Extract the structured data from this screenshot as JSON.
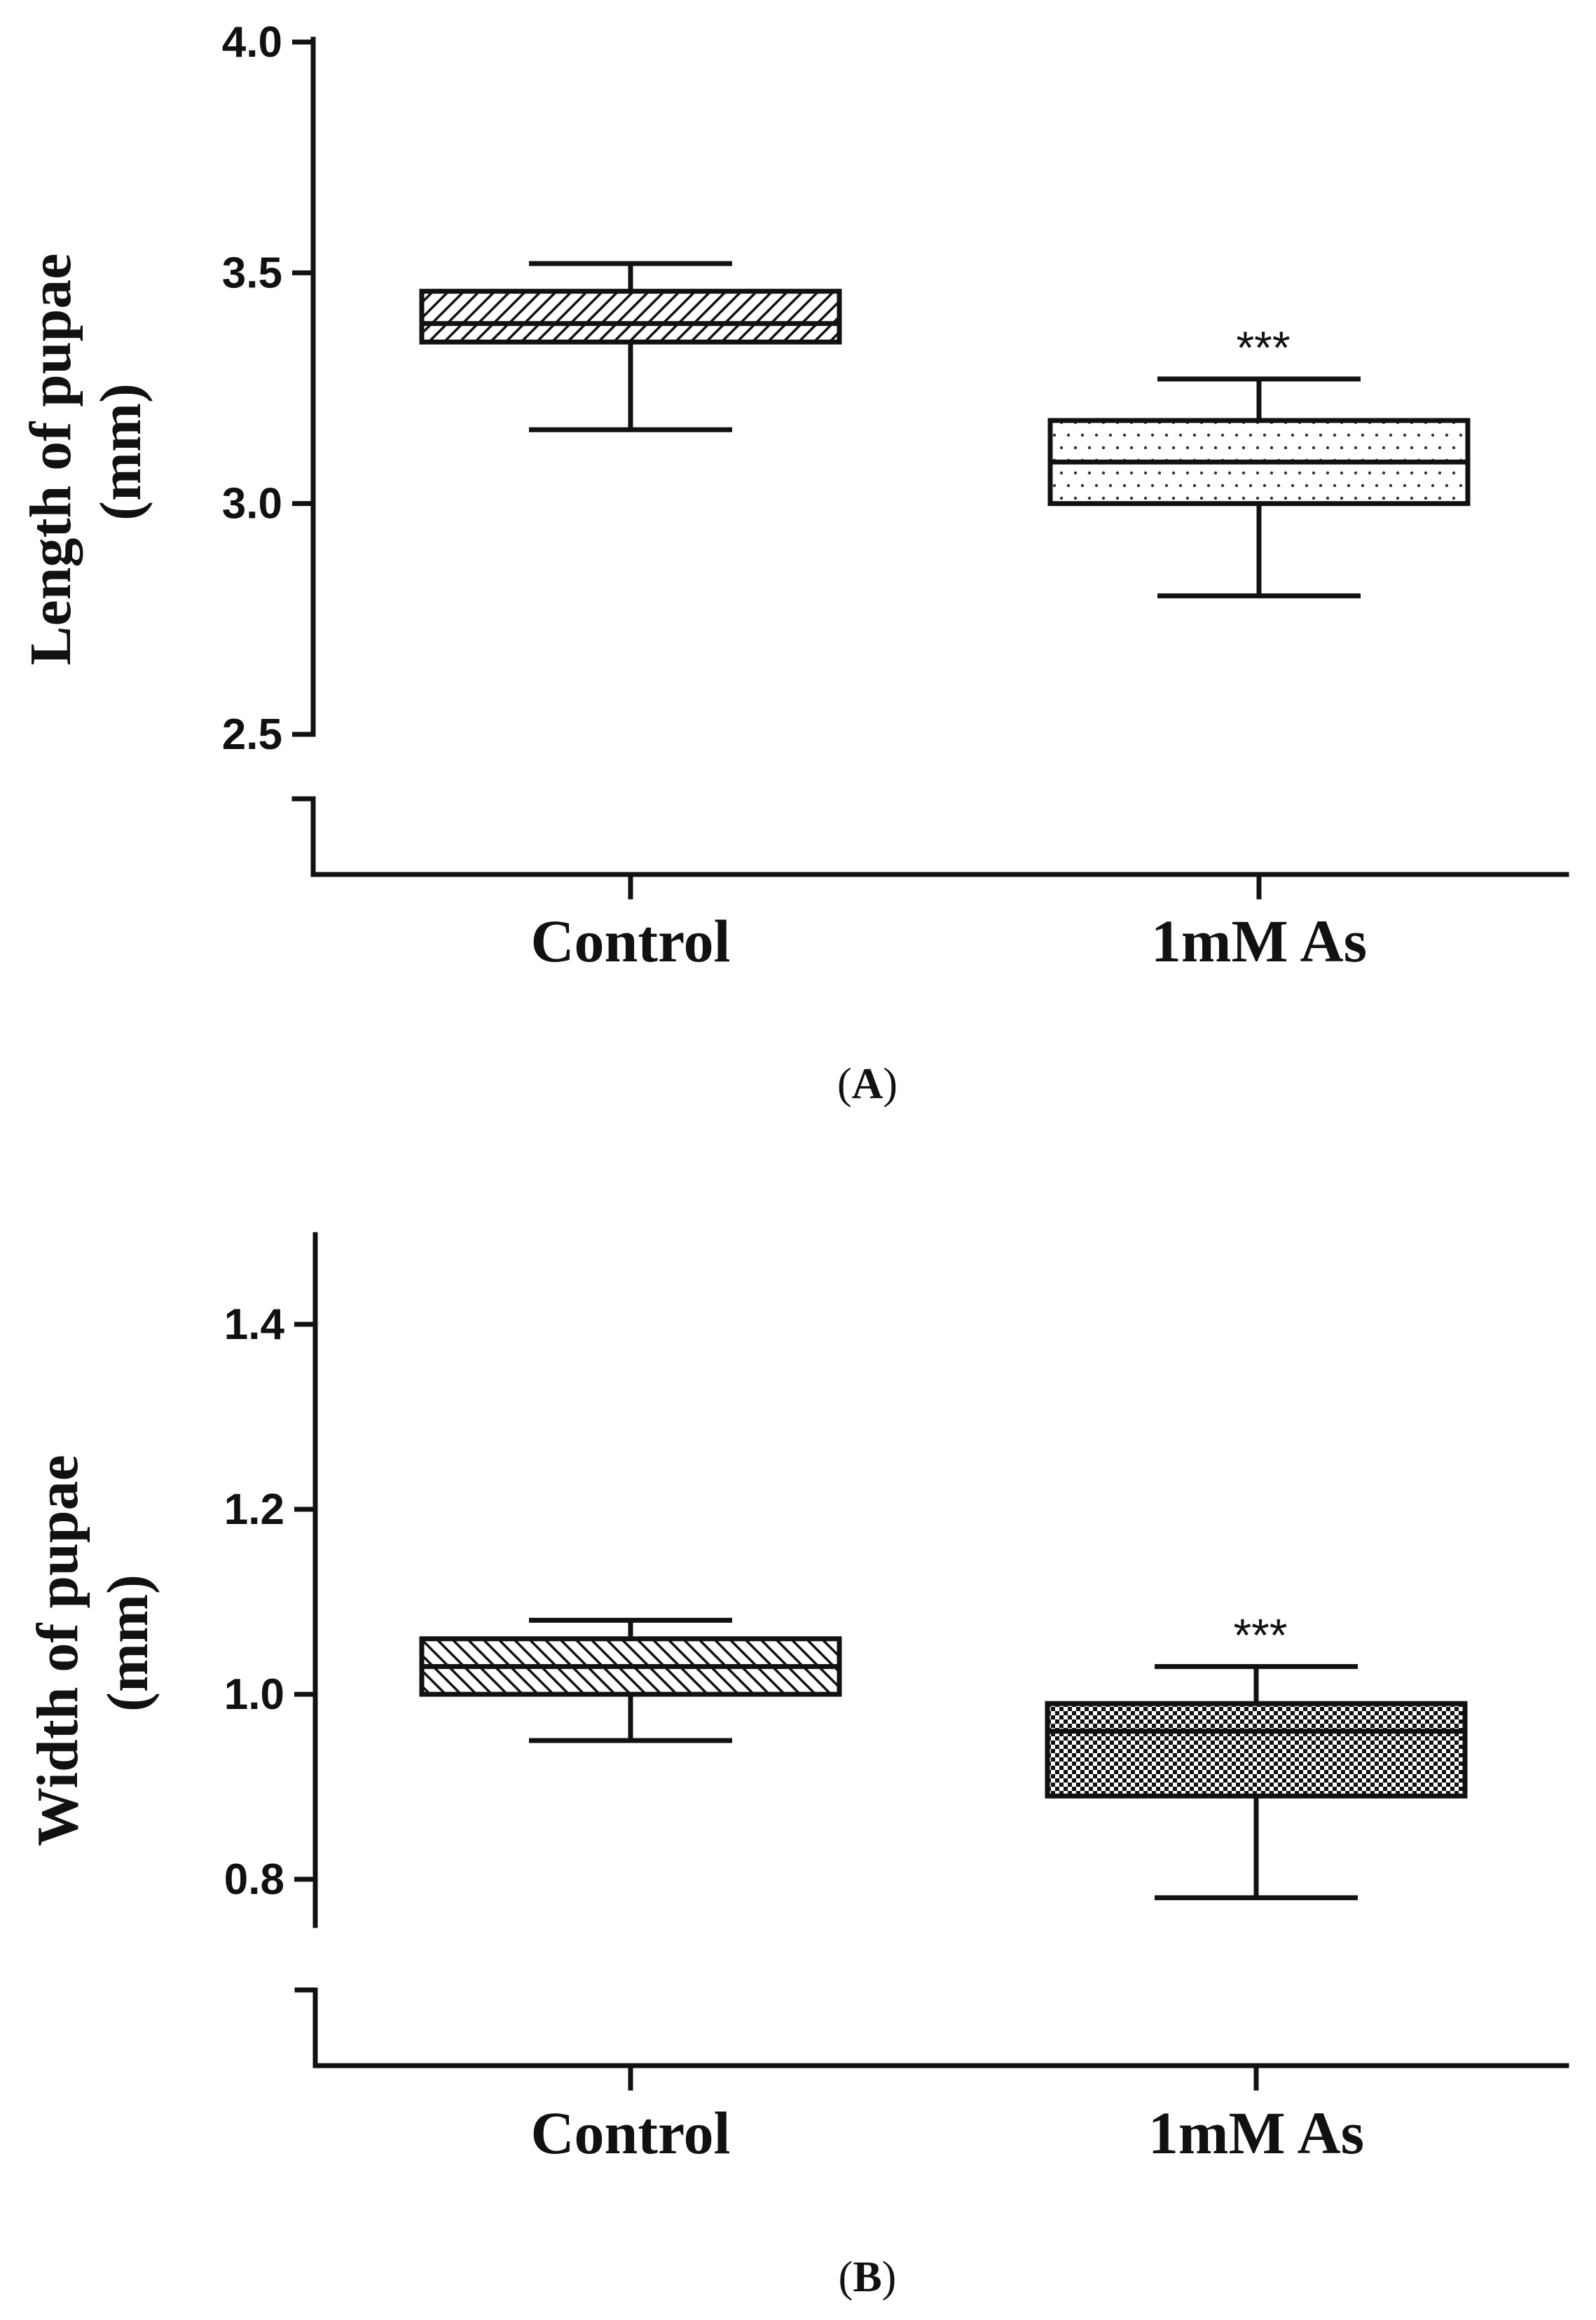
{
  "chart_data": [
    {
      "type": "box",
      "panel_label": "A",
      "ylabel_line1": "Length of pupae",
      "ylabel_line2": "(mm)",
      "categories": [
        "Control",
        "1mM As"
      ],
      "boxes": [
        {
          "category": "Control",
          "min": 3.16,
          "q1": 3.35,
          "median": 3.39,
          "q3": 3.46,
          "max": 3.52,
          "fill": "diagonal-hatch",
          "significance": ""
        },
        {
          "category": "1mM As",
          "min": 2.8,
          "q1": 3.0,
          "median": 3.09,
          "q3": 3.18,
          "max": 3.27,
          "fill": "dotted",
          "significance": "***"
        }
      ],
      "y_ticks": [
        "2.5",
        "3.0",
        "3.5",
        "4.0"
      ],
      "ylim": [
        2.5,
        4.0
      ],
      "axis_break": true,
      "grid": false
    },
    {
      "type": "box",
      "panel_label": "B",
      "ylabel_line1": "Width of pupae",
      "ylabel_line2": "(mm)",
      "categories": [
        "Control",
        "1mM As"
      ],
      "boxes": [
        {
          "category": "Control",
          "min": 0.95,
          "q1": 1.0,
          "median": 1.03,
          "q3": 1.06,
          "max": 1.08,
          "fill": "diagonal-hatch-reverse",
          "significance": ""
        },
        {
          "category": "1mM As",
          "min": 0.78,
          "q1": 0.89,
          "median": 0.96,
          "q3": 0.99,
          "max": 1.03,
          "fill": "checkered",
          "significance": "***"
        }
      ],
      "y_ticks": [
        "0.8",
        "1.0",
        "1.2",
        "1.4"
      ],
      "ylim": [
        0.75,
        1.5
      ],
      "axis_break": true,
      "grid": false
    }
  ]
}
